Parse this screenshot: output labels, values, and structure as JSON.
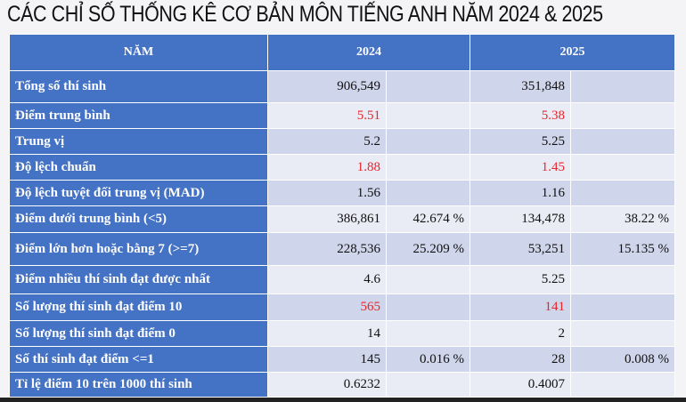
{
  "title": "CÁC CHỈ SỐ THỐNG KÊ CƠ BẢN MÔN TIẾNG ANH NĂM 2024 & 2025",
  "header": {
    "label": "NĂM",
    "y2024": "2024",
    "y2025": "2025"
  },
  "accent_color": "#4472c4",
  "highlight_color": "#e8262a",
  "rows": [
    {
      "label": "Tổng số thí sinh",
      "v2024": "906,549",
      "p2024": "",
      "v2025": "351,848",
      "p2025": "",
      "red": false
    },
    {
      "label": "Điểm trung bình",
      "v2024": "5.51",
      "p2024": "",
      "v2025": "5.38",
      "p2025": "",
      "red": true
    },
    {
      "label": "Trung vị",
      "v2024": "5.2",
      "p2024": "",
      "v2025": "5.25",
      "p2025": "",
      "red": false
    },
    {
      "label": "Độ lệch chuẩn",
      "v2024": "1.88",
      "p2024": "",
      "v2025": "1.45",
      "p2025": "",
      "red": true
    },
    {
      "label": "Độ lệch tuyệt đối trung vị (MAD)",
      "v2024": "1.56",
      "p2024": "",
      "v2025": "1.16",
      "p2025": "",
      "red": false
    },
    {
      "label": "Điểm dưới trung bình (<5)",
      "v2024": "386,861",
      "p2024": "42.674 %",
      "v2025": "134,478",
      "p2025": "38.22 %",
      "red": false
    },
    {
      "label": "Điểm lớn hơn hoặc bằng 7 (>=7)",
      "v2024": "228,536",
      "p2024": "25.209 %",
      "v2025": "53,251",
      "p2025": "15.135 %",
      "red": false
    },
    {
      "label": "Điểm nhiều thí sinh đạt được nhất",
      "v2024": "4.6",
      "p2024": "",
      "v2025": "5.25",
      "p2025": "",
      "red": false
    },
    {
      "label": "Số lượng thí sinh đạt điểm 10",
      "v2024": "565",
      "p2024": "",
      "v2025": "141",
      "p2025": "",
      "red": true
    },
    {
      "label": "Số lượng thí sinh đạt điểm 0",
      "v2024": "14",
      "p2024": "",
      "v2025": "2",
      "p2025": "",
      "red": false
    },
    {
      "label": "Số thí sinh đạt điểm <=1",
      "v2024": "145",
      "p2024": "0.016 %",
      "v2025": "28",
      "p2025": "0.008 %",
      "red": false
    },
    {
      "label": "Tỉ lệ điểm 10 trên 1000 thí sinh",
      "v2024": "0.6232",
      "p2024": "",
      "v2025": "0.4007",
      "p2025": "",
      "red": false
    }
  ]
}
